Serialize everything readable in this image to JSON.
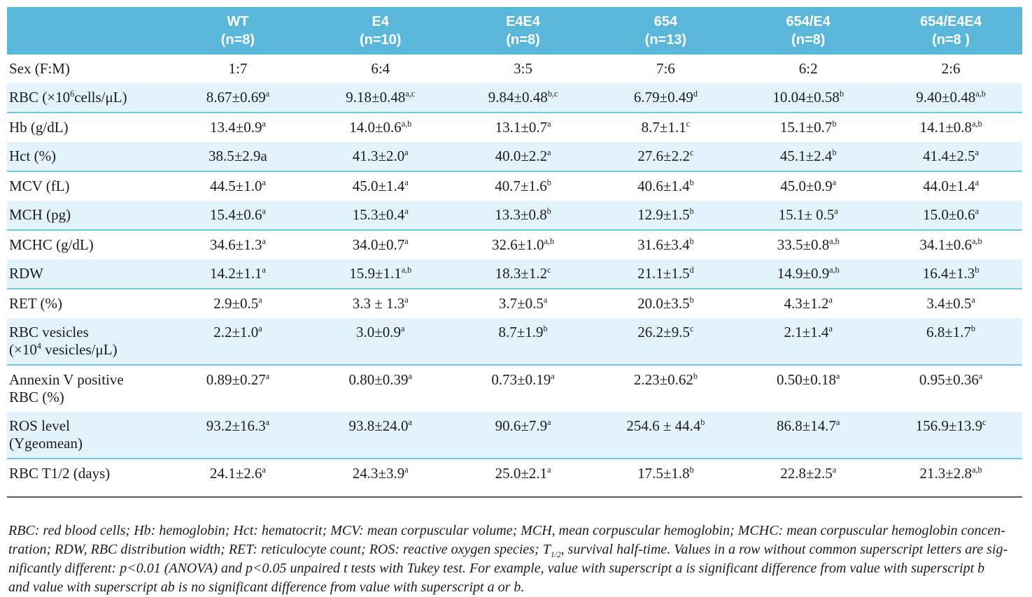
{
  "colors": {
    "header_bg": "#5bb7da",
    "header_text": "#ffffff",
    "shaded_row_bg": "#e2f3fb",
    "row_separator": "#6fc8e5",
    "bottom_rule": "#5e5e5e",
    "body_text": "#1c1c1c"
  },
  "table": {
    "columns": [
      "WT\n(n=8)",
      "E4\n(n=10)",
      "E4E4\n(n=8)",
      "654\n(n=13)",
      "654/E4\n(n=8)",
      "654/E4E4\n(n=8 )"
    ],
    "rows": [
      {
        "label": "Sex (F:M)",
        "shaded": false,
        "values": [
          "1:7",
          "6:4",
          "3:5",
          "7:6",
          "6:2",
          "2:6"
        ]
      },
      {
        "label": "RBC (×10^{6}cells/μL)",
        "shaded": true,
        "values": [
          "8.67±0.69^{a}",
          "9.18±0.48^{a,c}",
          "9.84±0.48^{b,c}",
          "6.79±0.49^{d}",
          "10.04±0.58^{b}",
          "9.40±0.48^{a,b}"
        ]
      },
      {
        "label": "Hb (g/dL)",
        "shaded": false,
        "values": [
          "13.4±0.9^{a}",
          "14.0±0.6^{a,b}",
          "13.1±0.7^{a}",
          "8.7±1.1^{c}",
          "15.1±0.7^{b}",
          "14.1±0.8^{a,b}"
        ]
      },
      {
        "label": "Hct (%)",
        "shaded": true,
        "values": [
          "38.5±2.9a",
          "41.3±2.0^{a}",
          "40.0±2.2^{a}",
          "27.6±2.2^{c}",
          "45.1±2.4^{b}",
          "41.4±2.5^{a}"
        ]
      },
      {
        "label": "MCV (fL)",
        "shaded": false,
        "values": [
          "44.5±1.0^{a}",
          "45.0±1.4^{a}",
          "40.7±1.6^{b}",
          "40.6±1.4^{b}",
          "45.0±0.9^{a}",
          "44.0±1.4^{a}"
        ]
      },
      {
        "label": "MCH (pg)",
        "shaded": true,
        "values": [
          "15.4±0.6^{a}",
          "15.3±0.4^{a}",
          "13.3±0.8^{b}",
          "12.9±1.5^{b}",
          "15.1± 0.5^{a}",
          "15.0±0.6^{a}"
        ]
      },
      {
        "label": "MCHC (g/dL)",
        "shaded": false,
        "values": [
          "34.6±1.3^{a}",
          "34.0±0.7^{a}",
          "32.6±1.0^{a,b}",
          "31.6±3.4^{b}",
          "33.5±0.8^{a,b}",
          "34.1±0.6^{a,b}"
        ]
      },
      {
        "label": "RDW",
        "shaded": true,
        "values": [
          "14.2±1.1^{a}",
          "15.9±1.1^{a,b}",
          "18.3±1.2^{c}",
          "21.1±1.5^{d}",
          "14.9±0.9^{a,b}",
          "16.4±1.3^{b}"
        ]
      },
      {
        "label": "RET (%)",
        "shaded": false,
        "values": [
          "2.9±0.5^{a}",
          "3.3 ± 1.3^{a}",
          "3.7±0.5^{a}",
          "20.0±3.5^{b}",
          "4.3±1.2^{a}",
          "3.4±0.5^{a}"
        ]
      },
      {
        "label": "RBC vesicles\n(×10^{4} vesicles/μL)",
        "shaded": true,
        "values": [
          "2.2±1.0^{a}",
          "3.0±0.9^{a}",
          "8.7±1.9^{b}",
          "26.2±9.5^{c}",
          "2.1±1.4^{a}",
          "6.8±1.7^{b}"
        ]
      },
      {
        "label": "Annexin V positive\nRBC (%)",
        "shaded": false,
        "values": [
          "0.89±0.27^{a}",
          "0.80±0.39^{a}",
          "0.73±0.19^{a}",
          "2.23±0.62^{b}",
          "0.50±0.18^{a}",
          "0.95±0.36^{a}"
        ]
      },
      {
        "label": "ROS level\n(Ygeomean)",
        "shaded": true,
        "values": [
          "93.2±16.3^{a}",
          "93.8±24.0^{a}",
          "90.6±7.9^{a}",
          "254.6 ± 44.4^{b}",
          "86.8±14.7^{a}",
          "156.9±13.9^{c}"
        ]
      },
      {
        "label": "RBC T1/2 (days)",
        "shaded": false,
        "values": [
          "24.1±2.6^{a}",
          "24.3±3.9^{a}",
          "25.0±2.1^{a}",
          "17.5±1.8^{b}",
          "22.8±2.5^{a}",
          "21.3±2.8^{a,b}"
        ]
      }
    ]
  },
  "footnote": "RBC: red blood cells; Hb: hemoglobin; Hct: hematocrit; MCV: mean corpuscular volume; MCH, mean corpuscular hemoglobin; MCHC: mean corpuscular hemoglobin concen-\ntration; RDW, RBC distribution width; RET: reticulocyte count; ROS: reactive oxygen species; T_{1/2}, survival half-time. Values in a row without common superscript letters are sig-\nnificantly different: p<0.01 (ANOVA) and p<0.05 unpaired t tests with Tukey test. For example, value with superscript a is significant difference from value with superscript b\nand value with superscript ab is no significant difference from value with superscript a or b."
}
